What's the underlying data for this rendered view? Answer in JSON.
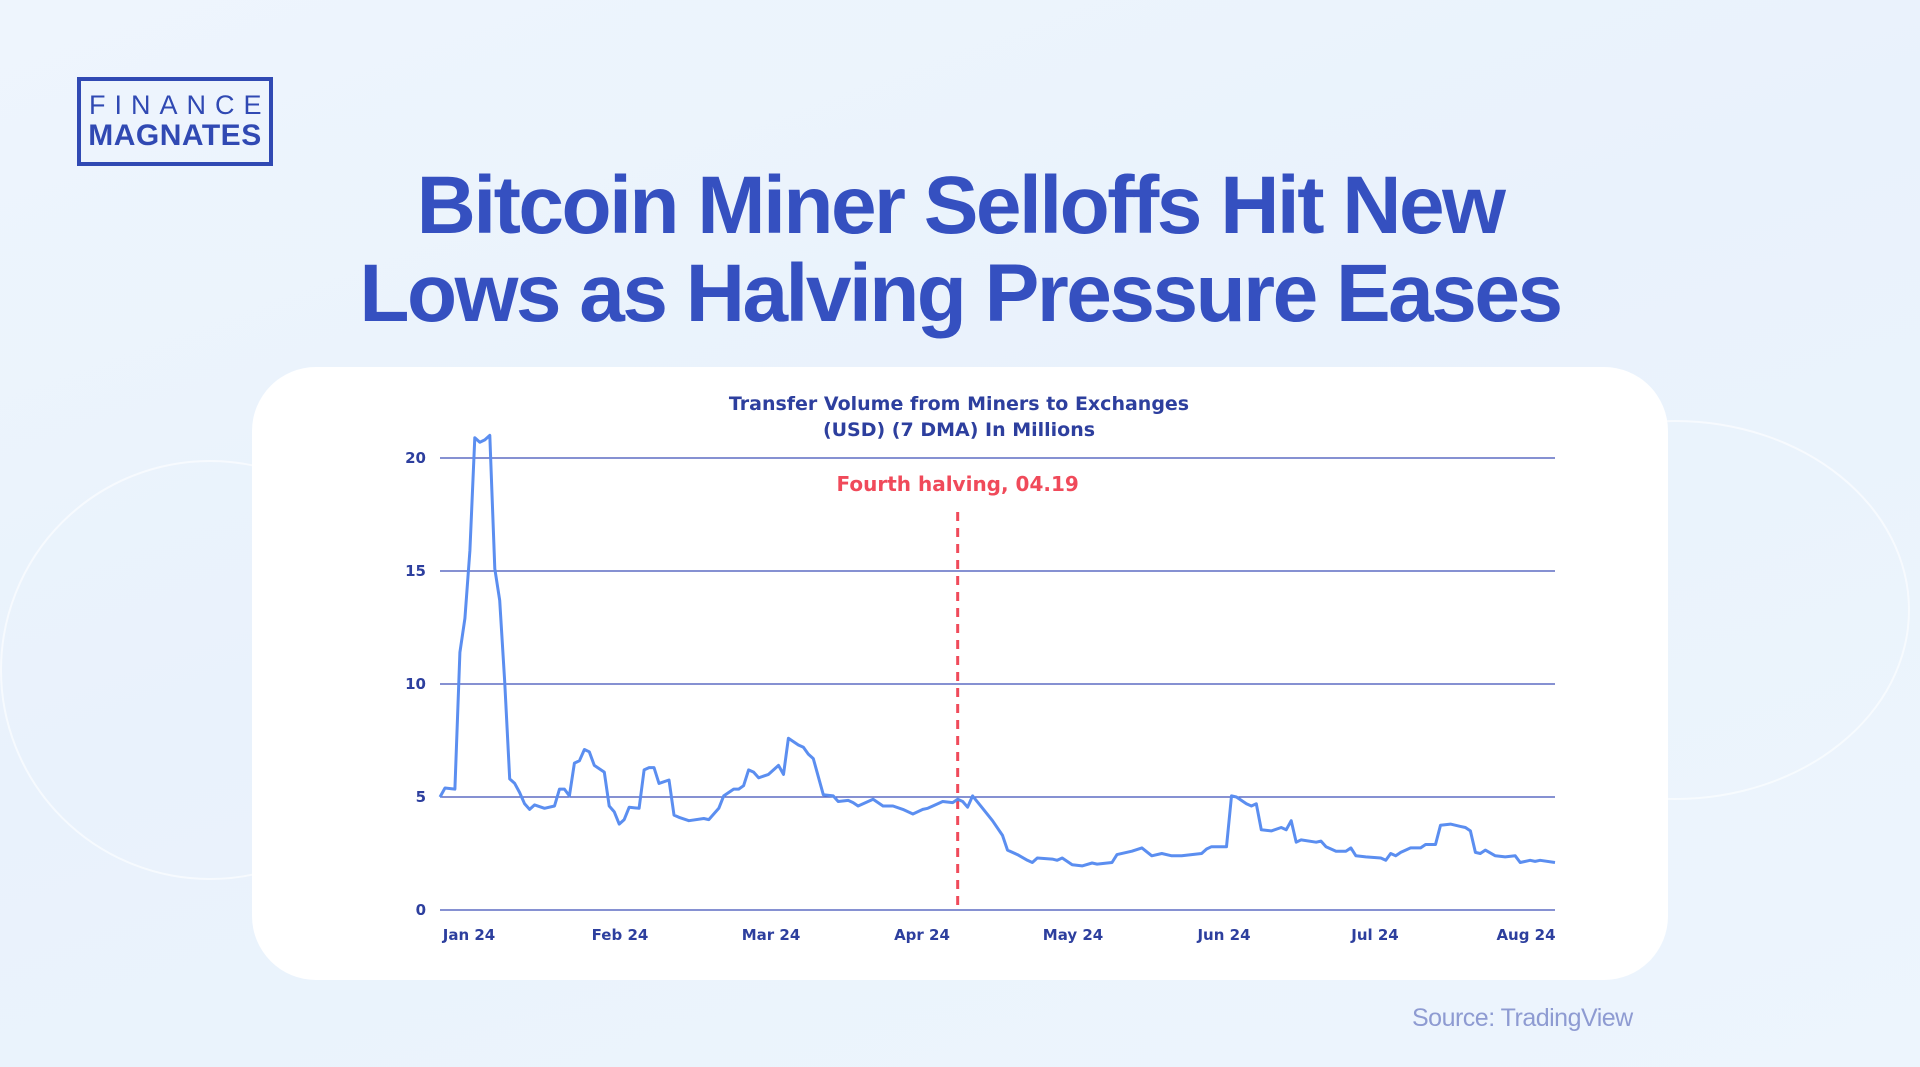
{
  "logo": {
    "line1": "FINANCE",
    "line2": "MAGNATES"
  },
  "headline": {
    "line1": "Bitcoin Miner Selloffs Hit New",
    "line2": "Lows as Halving Pressure Eases"
  },
  "source": "Source: TradingView",
  "colors": {
    "brand": "#3049b3",
    "headline": "#3550c0",
    "line": "#5b8ef0",
    "grid": "#3d4fb8",
    "annotation": "#f04a5a"
  },
  "chart_data": {
    "type": "line",
    "title_lines": [
      "Transfer Volume from Miners to Exchanges",
      "(USD) (7 DMA) In Millions"
    ],
    "xlabel": "",
    "ylabel": "",
    "ylim": [
      0,
      20
    ],
    "yticks": [
      0,
      5,
      10,
      15,
      20
    ],
    "xtick_labels": [
      "Jan 24",
      "Feb 24",
      "Mar 24",
      "Apr 24",
      "May 24",
      "Jun 24",
      "Jul 24",
      "Aug 24"
    ],
    "grid": "horizontal",
    "annotation": {
      "label": "Fourth halving, 04.19",
      "date": "2024-04-19",
      "style": "dashed-vertical"
    },
    "series": [
      {
        "points": [
          [
            "2024-01-06",
            5.0
          ],
          [
            "2024-01-07",
            5.4
          ],
          [
            "2024-01-09",
            5.35
          ],
          [
            "2024-01-10",
            11.4
          ],
          [
            "2024-01-11",
            12.9
          ],
          [
            "2024-01-12",
            15.9
          ],
          [
            "2024-01-13",
            20.9
          ],
          [
            "2024-01-14",
            20.7
          ],
          [
            "2024-01-15",
            20.8
          ],
          [
            "2024-01-16",
            21.0
          ],
          [
            "2024-01-17",
            15.1
          ],
          [
            "2024-01-18",
            13.7
          ],
          [
            "2024-01-19",
            10.1
          ],
          [
            "2024-01-20",
            5.8
          ],
          [
            "2024-01-21",
            5.6
          ],
          [
            "2024-01-22",
            5.2
          ],
          [
            "2024-01-23",
            4.7
          ],
          [
            "2024-01-24",
            4.45
          ],
          [
            "2024-01-25",
            4.65
          ],
          [
            "2024-01-27",
            4.5
          ],
          [
            "2024-01-29",
            4.6
          ],
          [
            "2024-01-30",
            5.35
          ],
          [
            "2024-01-31",
            5.35
          ],
          [
            "2024-02-01",
            5.05
          ],
          [
            "2024-02-02",
            6.5
          ],
          [
            "2024-02-03",
            6.6
          ],
          [
            "2024-02-04",
            7.1
          ],
          [
            "2024-02-05",
            7.0
          ],
          [
            "2024-02-06",
            6.4
          ],
          [
            "2024-02-08",
            6.1
          ],
          [
            "2024-02-09",
            4.6
          ],
          [
            "2024-02-10",
            4.35
          ],
          [
            "2024-02-11",
            3.8
          ],
          [
            "2024-02-12",
            4.0
          ],
          [
            "2024-02-13",
            4.55
          ],
          [
            "2024-02-15",
            4.5
          ],
          [
            "2024-02-16",
            6.2
          ],
          [
            "2024-02-17",
            6.3
          ],
          [
            "2024-02-18",
            6.3
          ],
          [
            "2024-02-19",
            5.6
          ],
          [
            "2024-02-21",
            5.75
          ],
          [
            "2024-02-22",
            4.2
          ],
          [
            "2024-02-23",
            4.1
          ],
          [
            "2024-02-25",
            3.95
          ],
          [
            "2024-02-28",
            4.05
          ],
          [
            "2024-02-29",
            4.0
          ],
          [
            "2024-03-02",
            4.5
          ],
          [
            "2024-03-03",
            5.05
          ],
          [
            "2024-03-05",
            5.35
          ],
          [
            "2024-03-06",
            5.35
          ],
          [
            "2024-03-07",
            5.5
          ],
          [
            "2024-03-08",
            6.2
          ],
          [
            "2024-03-09",
            6.1
          ],
          [
            "2024-03-10",
            5.85
          ],
          [
            "2024-03-12",
            6.0
          ],
          [
            "2024-03-14",
            6.4
          ],
          [
            "2024-03-15",
            6.0
          ],
          [
            "2024-03-16",
            7.6
          ],
          [
            "2024-03-18",
            7.3
          ],
          [
            "2024-03-19",
            7.2
          ],
          [
            "2024-03-20",
            6.9
          ],
          [
            "2024-03-21",
            6.7
          ],
          [
            "2024-03-23",
            5.1
          ],
          [
            "2024-03-25",
            5.05
          ],
          [
            "2024-03-26",
            4.8
          ],
          [
            "2024-03-28",
            4.85
          ],
          [
            "2024-03-29",
            4.75
          ],
          [
            "2024-03-30",
            4.6
          ],
          [
            "2024-04-02",
            4.9
          ],
          [
            "2024-04-04",
            4.6
          ],
          [
            "2024-04-06",
            4.6
          ],
          [
            "2024-04-08",
            4.45
          ],
          [
            "2024-04-10",
            4.25
          ],
          [
            "2024-04-12",
            4.45
          ],
          [
            "2024-04-13",
            4.5
          ],
          [
            "2024-04-15",
            4.7
          ],
          [
            "2024-04-16",
            4.8
          ],
          [
            "2024-04-18",
            4.75
          ],
          [
            "2024-04-19",
            4.9
          ],
          [
            "2024-04-20",
            4.8
          ],
          [
            "2024-04-21",
            4.55
          ],
          [
            "2024-04-22",
            5.05
          ],
          [
            "2024-04-24",
            4.5
          ],
          [
            "2024-04-26",
            3.95
          ],
          [
            "2024-04-28",
            3.3
          ],
          [
            "2024-04-29",
            2.65
          ],
          [
            "2024-05-01",
            2.45
          ],
          [
            "2024-05-03",
            2.2
          ],
          [
            "2024-05-04",
            2.1
          ],
          [
            "2024-05-05",
            2.3
          ],
          [
            "2024-05-08",
            2.25
          ],
          [
            "2024-05-09",
            2.2
          ],
          [
            "2024-05-10",
            2.3
          ],
          [
            "2024-05-12",
            2.0
          ],
          [
            "2024-05-14",
            1.95
          ],
          [
            "2024-05-16",
            2.08
          ],
          [
            "2024-05-17",
            2.03
          ],
          [
            "2024-05-20",
            2.1
          ],
          [
            "2024-05-21",
            2.45
          ],
          [
            "2024-05-24",
            2.6
          ],
          [
            "2024-05-26",
            2.75
          ],
          [
            "2024-05-28",
            2.4
          ],
          [
            "2024-05-30",
            2.5
          ],
          [
            "2024-06-01",
            2.4
          ],
          [
            "2024-06-03",
            2.4
          ],
          [
            "2024-06-05",
            2.45
          ],
          [
            "2024-06-07",
            2.5
          ],
          [
            "2024-06-08",
            2.7
          ],
          [
            "2024-06-09",
            2.8
          ],
          [
            "2024-06-12",
            2.8
          ],
          [
            "2024-06-13",
            5.05
          ],
          [
            "2024-06-14",
            5.0
          ],
          [
            "2024-06-16",
            4.7
          ],
          [
            "2024-06-17",
            4.6
          ],
          [
            "2024-06-18",
            4.7
          ],
          [
            "2024-06-19",
            3.55
          ],
          [
            "2024-06-21",
            3.5
          ],
          [
            "2024-06-23",
            3.65
          ],
          [
            "2024-06-24",
            3.55
          ],
          [
            "2024-06-25",
            3.95
          ],
          [
            "2024-06-26",
            3.0
          ],
          [
            "2024-06-27",
            3.1
          ],
          [
            "2024-06-30",
            3.0
          ],
          [
            "2024-07-01",
            3.05
          ],
          [
            "2024-07-02",
            2.8
          ],
          [
            "2024-07-04",
            2.6
          ],
          [
            "2024-07-06",
            2.6
          ],
          [
            "2024-07-07",
            2.75
          ],
          [
            "2024-07-08",
            2.4
          ],
          [
            "2024-07-10",
            2.35
          ],
          [
            "2024-07-13",
            2.3
          ],
          [
            "2024-07-14",
            2.2
          ],
          [
            "2024-07-15",
            2.5
          ],
          [
            "2024-07-16",
            2.4
          ],
          [
            "2024-07-17",
            2.55
          ],
          [
            "2024-07-19",
            2.75
          ],
          [
            "2024-07-21",
            2.75
          ],
          [
            "2024-07-22",
            2.9
          ],
          [
            "2024-07-24",
            2.9
          ],
          [
            "2024-07-25",
            3.75
          ],
          [
            "2024-07-27",
            3.8
          ],
          [
            "2024-07-29",
            3.7
          ],
          [
            "2024-07-30",
            3.65
          ],
          [
            "2024-07-31",
            3.5
          ],
          [
            "2024-08-01",
            2.55
          ],
          [
            "2024-08-02",
            2.5
          ],
          [
            "2024-08-03",
            2.65
          ],
          [
            "2024-08-05",
            2.4
          ],
          [
            "2024-08-07",
            2.35
          ],
          [
            "2024-08-09",
            2.4
          ],
          [
            "2024-08-10",
            2.1
          ],
          [
            "2024-08-12",
            2.2
          ],
          [
            "2024-08-13",
            2.15
          ],
          [
            "2024-08-14",
            2.2
          ],
          [
            "2024-08-17",
            2.1
          ]
        ]
      }
    ]
  }
}
